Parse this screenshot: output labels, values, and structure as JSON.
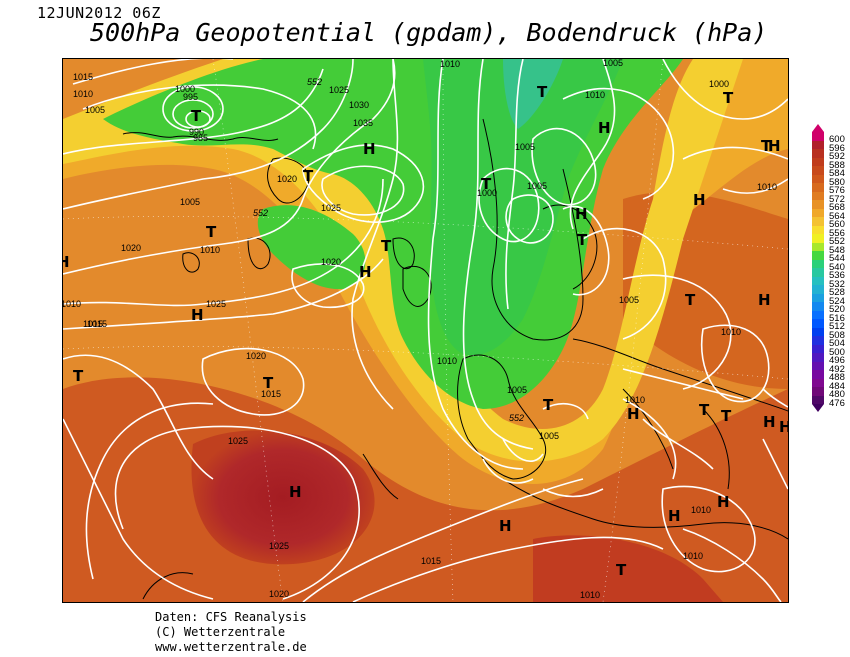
{
  "header": {
    "datetime": "12JUN2012 06Z",
    "title": "500hPa Geopotential (gpdam), Bodendruck (hPa)"
  },
  "credits": {
    "line1": "Daten: CFS Reanalysis",
    "line2": "(C) Wetterzentrale",
    "line3": "www.wetterzentrale.de"
  },
  "scale": {
    "labels": [
      "600",
      "596",
      "592",
      "588",
      "584",
      "580",
      "576",
      "572",
      "568",
      "564",
      "560",
      "556",
      "552",
      "548",
      "544",
      "540",
      "536",
      "532",
      "528",
      "524",
      "520",
      "516",
      "512",
      "508",
      "504",
      "500",
      "496",
      "492",
      "488",
      "484",
      "480",
      "476"
    ],
    "colors": [
      "#d0006a",
      "#b0202a",
      "#b83020",
      "#c03c1c",
      "#c84a1c",
      "#d0581c",
      "#d86a1e",
      "#e07c22",
      "#e89226",
      "#f0a82a",
      "#f4c232",
      "#f8de2e",
      "#f0f024",
      "#a8e82c",
      "#46d840",
      "#2ad07a",
      "#28c8a0",
      "#26c0c0",
      "#22b2d2",
      "#1aa0e0",
      "#1288f0",
      "#0870ff",
      "#0058ff",
      "#0040f0",
      "#2030e0",
      "#3820d0",
      "#5018c0",
      "#6410b0",
      "#7808a0",
      "#800890",
      "#700878",
      "#500868"
    ]
  },
  "map": {
    "labels": {
      "highs": [
        "H",
        "H",
        "H",
        "H",
        "H",
        "H",
        "H",
        "H",
        "H",
        "H",
        "H",
        "H",
        "H",
        "H",
        "H",
        "H"
      ],
      "lows": [
        "T",
        "T",
        "T",
        "T",
        "T",
        "T",
        "T",
        "T",
        "T",
        "T",
        "T",
        "T",
        "T",
        "T",
        "T",
        "T"
      ],
      "pressure": [
        "1015",
        "1010",
        "1005",
        "1000",
        "995",
        "990",
        "985",
        "1025",
        "1030",
        "1035",
        "1020",
        "1010",
        "1005",
        "1010",
        "1005",
        "1000",
        "1005",
        "1010",
        "1020",
        "1025",
        "1005",
        "1010",
        "1015",
        "1020",
        "1025",
        "1015",
        "1020",
        "1015",
        "1025",
        "1025",
        "1015",
        "1020",
        "1010",
        "1005",
        "1005",
        "1005",
        "1010",
        "1010",
        "1010",
        "1010",
        "1010",
        "1010",
        "1000"
      ],
      "geopotential": [
        "552",
        "552",
        "552"
      ]
    }
  }
}
